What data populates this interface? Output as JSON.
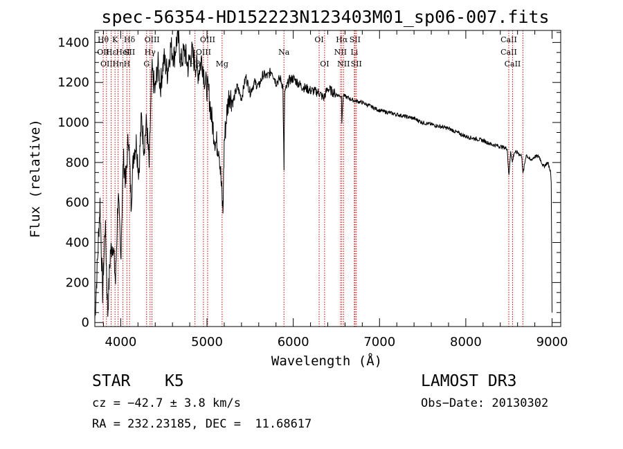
{
  "chart_data": {
    "type": "line",
    "title": "spec-56354-HD152223N123403M01_sp06-007.fits",
    "xlabel": "Wavelength (Å)",
    "ylabel": "Flux (relative)",
    "xlim": [
      3700,
      9100
    ],
    "ylim": [
      -20,
      1460
    ],
    "xticks": [
      4000,
      5000,
      6000,
      7000,
      8000,
      9000
    ],
    "yticks": [
      0,
      200,
      400,
      600,
      800,
      1000,
      1200,
      1400
    ],
    "series": [
      {
        "name": "flux",
        "x": [
          3700,
          3730,
          3760,
          3790,
          3820,
          3850,
          3880,
          3910,
          3940,
          3970,
          4000,
          4030,
          4060,
          4090,
          4120,
          4150,
          4180,
          4210,
          4240,
          4270,
          4300,
          4330,
          4360,
          4400,
          4430,
          4460,
          4500,
          4540,
          4580,
          4620,
          4660,
          4700,
          4740,
          4780,
          4820,
          4860,
          4900,
          4940,
          4980,
          5020,
          5060,
          5100,
          5140,
          5170,
          5185,
          5200,
          5230,
          5260,
          5300,
          5350,
          5400,
          5450,
          5500,
          5550,
          5600,
          5650,
          5700,
          5750,
          5800,
          5850,
          5880,
          5893,
          5900,
          5920,
          5950,
          6000,
          6100,
          6200,
          6300,
          6350,
          6400,
          6500,
          6560,
          6563,
          6580,
          6600,
          6700,
          6800,
          6900,
          7000,
          7100,
          7200,
          7300,
          7400,
          7500,
          7600,
          7700,
          7800,
          7900,
          8000,
          8100,
          8200,
          8300,
          8400,
          8480,
          8500,
          8520,
          8540,
          8560,
          8600,
          8650,
          8662,
          8700,
          8750,
          8800,
          8850,
          8900,
          8950,
          8980,
          8990,
          9000
        ],
        "values": [
          20,
          300,
          600,
          150,
          500,
          50,
          350,
          400,
          200,
          650,
          320,
          820,
          700,
          950,
          600,
          850,
          900,
          750,
          1020,
          880,
          1000,
          780,
          1260,
          1150,
          1300,
          1180,
          1320,
          1250,
          1380,
          1330,
          1440,
          1300,
          1360,
          1280,
          1350,
          1300,
          1250,
          1320,
          1200,
          1150,
          1000,
          900,
          880,
          650,
          550,
          900,
          1050,
          1150,
          1100,
          1180,
          1120,
          1230,
          1150,
          1200,
          1180,
          1240,
          1230,
          1260,
          1200,
          1220,
          1180,
          750,
          1150,
          1170,
          1210,
          1220,
          1180,
          1160,
          1150,
          1120,
          1170,
          1140,
          1130,
          1000,
          1140,
          1130,
          1110,
          1100,
          1080,
          1060,
          1050,
          1040,
          1030,
          1020,
          1000,
          990,
          980,
          970,
          950,
          930,
          920,
          910,
          890,
          880,
          870,
          730,
          860,
          800,
          850,
          850,
          830,
          740,
          840,
          810,
          830,
          830,
          780,
          800,
          760,
          700,
          50
        ],
        "color": "#000000"
      }
    ],
    "lines": [
      {
        "x": 3797,
        "labels": [
          "Hθ",
          "OII"
        ],
        "rows": [
          0,
          1
        ]
      },
      {
        "x": 3835,
        "labels": [
          "OII"
        ],
        "rows": [
          2
        ]
      },
      {
        "x": 3889,
        "labels": [
          "Hε"
        ],
        "rows": [
          1
        ]
      },
      {
        "x": 3934,
        "labels": [
          "K"
        ],
        "rows": [
          0
        ]
      },
      {
        "x": 3970,
        "labels": [
          "Hη"
        ],
        "rows": [
          2
        ]
      },
      {
        "x": 4026,
        "labels": [
          "HeI"
        ],
        "rows": [
          1
        ]
      },
      {
        "x": 4072,
        "labels": [
          "H"
        ],
        "rows": [
          2
        ]
      },
      {
        "x": 4102,
        "labels": [
          "Hδ",
          "SII"
        ],
        "rows": [
          0,
          1
        ]
      },
      {
        "x": 4300,
        "labels": [
          "G"
        ],
        "rows": [
          2
        ]
      },
      {
        "x": 4340,
        "labels": [
          "Hγ"
        ],
        "rows": [
          1
        ]
      },
      {
        "x": 4363,
        "labels": [
          "OIII"
        ],
        "rows": [
          0
        ]
      },
      {
        "x": 4861,
        "labels": [
          "Hβ"
        ],
        "rows": [
          2
        ]
      },
      {
        "x": 4959,
        "labels": [
          "OIII"
        ],
        "rows": [
          1
        ]
      },
      {
        "x": 5007,
        "labels": [
          "OIII"
        ],
        "rows": [
          0
        ]
      },
      {
        "x": 5175,
        "labels": [
          "Mg"
        ],
        "rows": [
          2
        ]
      },
      {
        "x": 5892,
        "labels": [
          "Na"
        ],
        "rows": [
          1
        ]
      },
      {
        "x": 6300,
        "labels": [
          "OI"
        ],
        "rows": [
          0
        ]
      },
      {
        "x": 6363,
        "labels": [
          "OI"
        ],
        "rows": [
          2
        ]
      },
      {
        "x": 6548,
        "labels": [
          "NII"
        ],
        "rows": [
          1
        ]
      },
      {
        "x": 6563,
        "labels": [
          "Hα"
        ],
        "rows": [
          0
        ]
      },
      {
        "x": 6583,
        "labels": [
          "NII"
        ],
        "rows": [
          2
        ]
      },
      {
        "x": 6708,
        "labels": [
          "Li"
        ],
        "rows": [
          1
        ]
      },
      {
        "x": 6716,
        "labels": [
          "SII"
        ],
        "rows": [
          0
        ]
      },
      {
        "x": 6731,
        "labels": [
          "SII"
        ],
        "rows": [
          2
        ]
      },
      {
        "x": 8498,
        "labels": [
          "CaII",
          "CaII"
        ],
        "rows": [
          0,
          1
        ]
      },
      {
        "x": 8542,
        "labels": [
          "CaII"
        ],
        "rows": [
          2
        ]
      },
      {
        "x": 8662,
        "labels": [],
        "rows": []
      }
    ]
  },
  "info": {
    "class": "STAR",
    "subclass": "K5",
    "survey": "LAMOST DR3",
    "cz": "cz = −42.7 ± 3.8 km/s",
    "obs_date": "Obs−Date: 20130302",
    "radec": "RA = 232.23185, DEC =  11.68617"
  },
  "colors": {
    "line_marker": "#cc0000",
    "axis": "#000000"
  }
}
